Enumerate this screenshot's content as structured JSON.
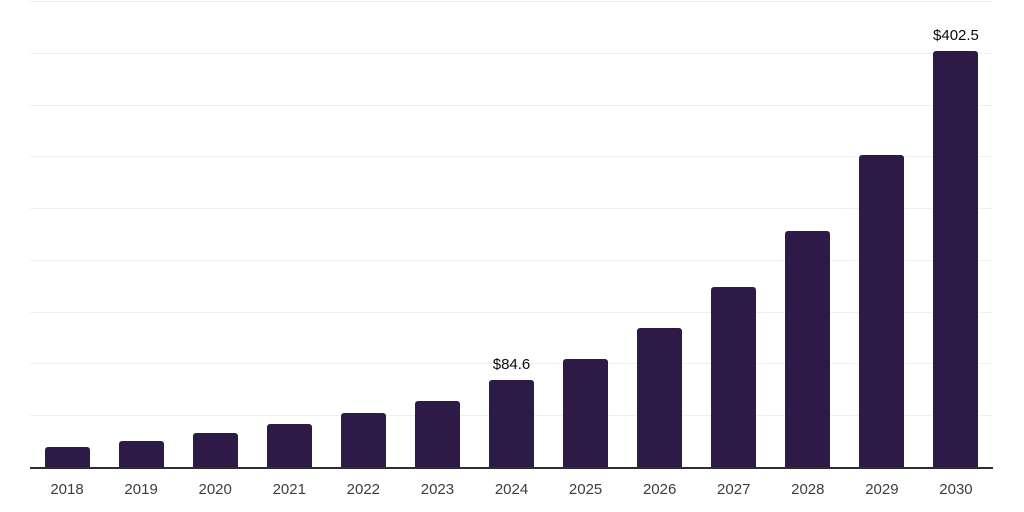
{
  "chart_data": {
    "type": "bar",
    "title": "",
    "categories": [
      "2018",
      "2019",
      "2020",
      "2021",
      "2022",
      "2023",
      "2024",
      "2025",
      "2026",
      "2027",
      "2028",
      "2029",
      "2030"
    ],
    "values": [
      20.1,
      26.4,
      33.5,
      42.2,
      52.9,
      65.1,
      84.6,
      105.2,
      134.9,
      175.2,
      229.3,
      302.4,
      402.5
    ],
    "value_labels": [
      "",
      "",
      "",
      "",
      "",
      "",
      "$84.6",
      "",
      "",
      "",
      "",
      "",
      "$402.5"
    ],
    "xlabel": "",
    "ylabel": "",
    "ylim": [
      0,
      450
    ],
    "gridline_step": 50,
    "grid": true,
    "y_axis_tick_labels_visible": false,
    "legend": "none",
    "colors": {
      "bar": "#2e1a47",
      "gridline": "#f0f0f0",
      "axis_line": "#2e2e2e",
      "tick_label": "#3d3d3d",
      "value_label": "#0a0a0a",
      "background": "#ffffff"
    }
  }
}
